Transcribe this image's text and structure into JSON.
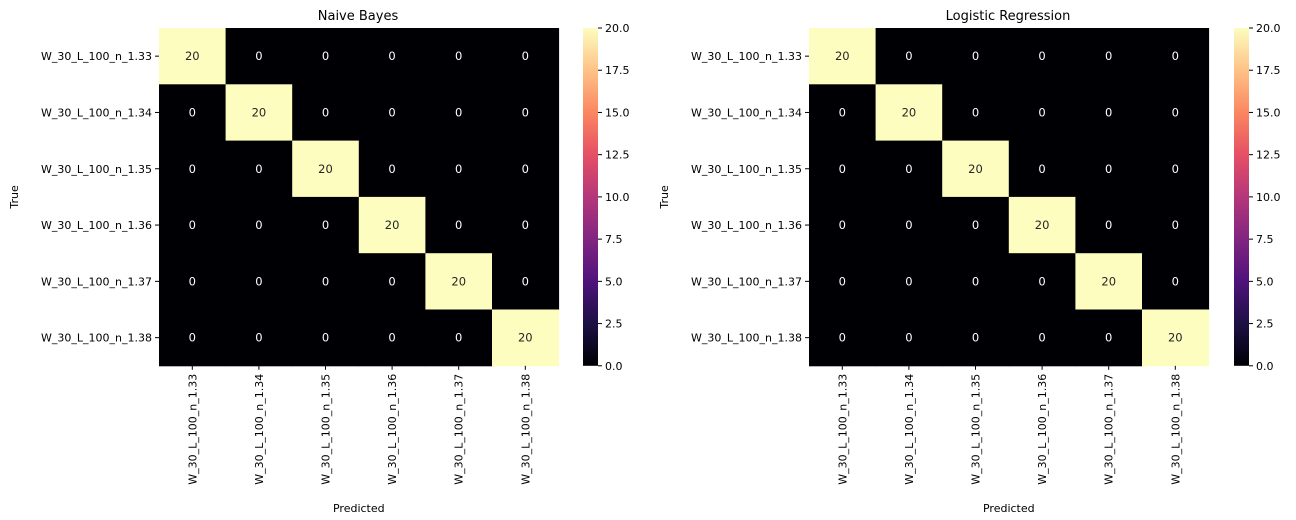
{
  "chart_data": [
    {
      "type": "heatmap",
      "title": "Naive Bayes",
      "xlabel": "Predicted",
      "ylabel": "True",
      "x_categories": [
        "W_30_L_100_n_1.33",
        "W_30_L_100_n_1.34",
        "W_30_L_100_n_1.35",
        "W_30_L_100_n_1.36",
        "W_30_L_100_n_1.37",
        "W_30_L_100_n_1.38"
      ],
      "y_categories": [
        "W_30_L_100_n_1.33",
        "W_30_L_100_n_1.34",
        "W_30_L_100_n_1.35",
        "W_30_L_100_n_1.36",
        "W_30_L_100_n_1.37",
        "W_30_L_100_n_1.38"
      ],
      "values": [
        [
          20,
          0,
          0,
          0,
          0,
          0
        ],
        [
          0,
          20,
          0,
          0,
          0,
          0
        ],
        [
          0,
          0,
          20,
          0,
          0,
          0
        ],
        [
          0,
          0,
          0,
          20,
          0,
          0
        ],
        [
          0,
          0,
          0,
          0,
          20,
          0
        ],
        [
          0,
          0,
          0,
          0,
          0,
          20
        ]
      ],
      "colorbar": {
        "colormap": "magma",
        "range": [
          0,
          20
        ],
        "ticks": [
          0,
          2.5,
          5,
          7.5,
          10,
          12.5,
          15,
          17.5,
          20
        ],
        "tick_labels": [
          "0.0",
          "2.5",
          "5.0",
          "7.5",
          "10.0",
          "12.5",
          "15.0",
          "17.5",
          "20.0"
        ]
      }
    },
    {
      "type": "heatmap",
      "title": "Logistic Regression",
      "xlabel": "Predicted",
      "ylabel": "True",
      "x_categories": [
        "W_30_L_100_n_1.33",
        "W_30_L_100_n_1.34",
        "W_30_L_100_n_1.35",
        "W_30_L_100_n_1.36",
        "W_30_L_100_n_1.37",
        "W_30_L_100_n_1.38"
      ],
      "y_categories": [
        "W_30_L_100_n_1.33",
        "W_30_L_100_n_1.34",
        "W_30_L_100_n_1.35",
        "W_30_L_100_n_1.36",
        "W_30_L_100_n_1.37",
        "W_30_L_100_n_1.38"
      ],
      "values": [
        [
          20,
          0,
          0,
          0,
          0,
          0
        ],
        [
          0,
          20,
          0,
          0,
          0,
          0
        ],
        [
          0,
          0,
          20,
          0,
          0,
          0
        ],
        [
          0,
          0,
          0,
          20,
          0,
          0
        ],
        [
          0,
          0,
          0,
          0,
          20,
          0
        ],
        [
          0,
          0,
          0,
          0,
          0,
          20
        ]
      ],
      "colorbar": {
        "colormap": "magma",
        "range": [
          0,
          20
        ],
        "ticks": [
          0,
          2.5,
          5,
          7.5,
          10,
          12.5,
          15,
          17.5,
          20
        ],
        "tick_labels": [
          "0.0",
          "2.5",
          "5.0",
          "7.5",
          "10.0",
          "12.5",
          "15.0",
          "17.5",
          "20.0"
        ]
      }
    }
  ]
}
